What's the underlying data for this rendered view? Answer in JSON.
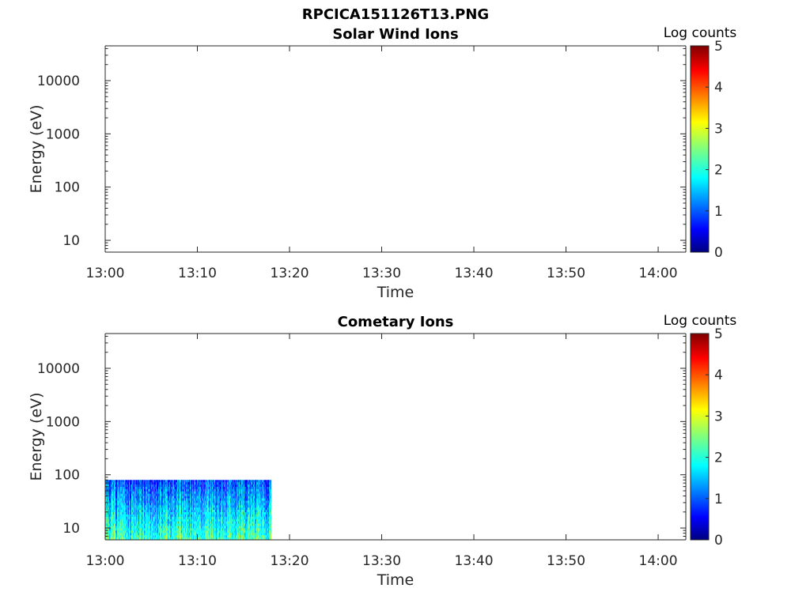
{
  "figure_title": "RPCICA151126T13.PNG",
  "chart_data": [
    {
      "type": "heatmap",
      "title": "Solar Wind Ions",
      "xlabel": "Time",
      "ylabel": "Energy (eV)",
      "x_ticks": [
        "13:00",
        "13:10",
        "13:20",
        "13:30",
        "13:40",
        "13:50",
        "14:00"
      ],
      "xlim": [
        "13:00",
        "14:03"
      ],
      "y_scale": "log",
      "ylim": [
        6,
        45000
      ],
      "y_ticks": [
        10,
        100,
        1000,
        10000
      ],
      "colorbar": {
        "label": "Log counts",
        "ticks": [
          0,
          1,
          2,
          3,
          4,
          5
        ],
        "range": [
          0,
          5
        ],
        "colormap": "jet"
      },
      "data_region": null
    },
    {
      "type": "heatmap",
      "title": "Cometary Ions",
      "xlabel": "Time",
      "ylabel": "Energy (eV)",
      "x_ticks": [
        "13:00",
        "13:10",
        "13:20",
        "13:30",
        "13:40",
        "13:50",
        "14:00"
      ],
      "xlim": [
        "13:00",
        "14:03"
      ],
      "y_scale": "log",
      "ylim": [
        6,
        45000
      ],
      "y_ticks": [
        10,
        100,
        1000,
        10000
      ],
      "colorbar": {
        "label": "Log counts",
        "ticks": [
          0,
          1,
          2,
          3,
          4,
          5
        ],
        "range": [
          0,
          5
        ],
        "colormap": "jet"
      },
      "data_region": {
        "time_start": "13:00",
        "time_end": "13:18",
        "energy_min": 6,
        "energy_max": 80,
        "log_counts_range": [
          0.5,
          3.0
        ],
        "typical_log_counts_low_energy": 2.2,
        "typical_log_counts_high_energy": 1.0
      }
    }
  ]
}
